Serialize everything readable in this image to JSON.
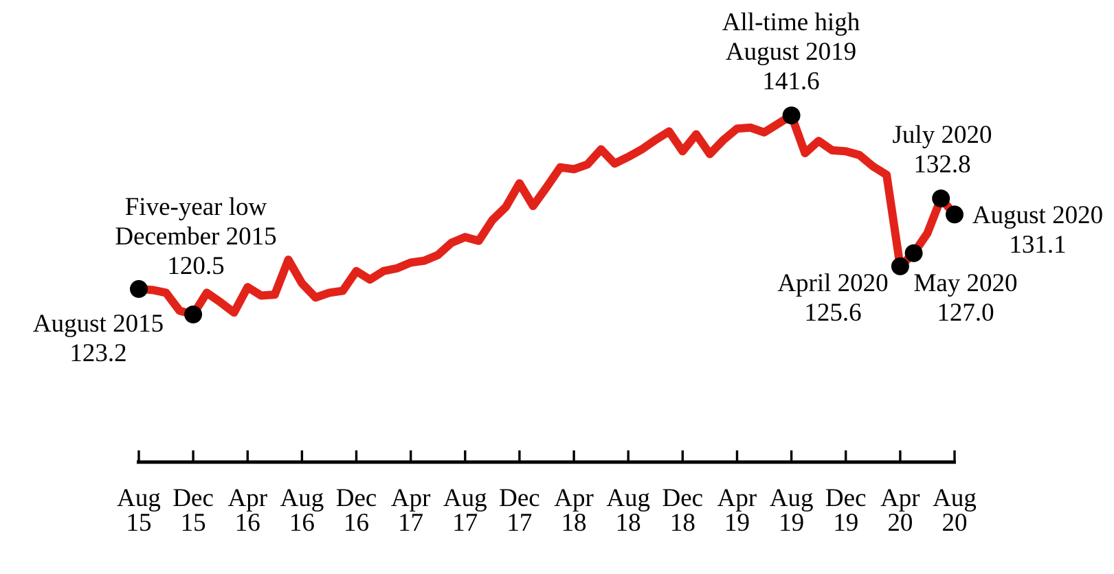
{
  "chart_data": {
    "type": "line",
    "title": "",
    "x_label": "",
    "y_label": "",
    "y_axis_visible": false,
    "ylim": [
      118,
      144
    ],
    "line_color": "#e2231a",
    "marker_color": "#000000",
    "axis_color": "#000000",
    "background_color": "#ffffff",
    "months": [
      "Aug 2015",
      "Sep 2015",
      "Oct 2015",
      "Nov 2015",
      "Dec 2015",
      "Jan 2016",
      "Feb 2016",
      "Mar 2016",
      "Apr 2016",
      "May 2016",
      "Jun 2016",
      "Jul 2016",
      "Aug 2016",
      "Sep 2016",
      "Oct 2016",
      "Nov 2016",
      "Dec 2016",
      "Jan 2017",
      "Feb 2017",
      "Mar 2017",
      "Apr 2017",
      "May 2017",
      "Jun 2017",
      "Jul 2017",
      "Aug 2017",
      "Sep 2017",
      "Oct 2017",
      "Nov 2017",
      "Dec 2017",
      "Jan 2018",
      "Feb 2018",
      "Mar 2018",
      "Apr 2018",
      "May 2018",
      "Jun 2018",
      "Jul 2018",
      "Aug 2018",
      "Sep 2018",
      "Oct 2018",
      "Nov 2018",
      "Dec 2018",
      "Jan 2019",
      "Feb 2019",
      "Mar 2019",
      "Apr 2019",
      "May 2019",
      "Jun 2019",
      "Jul 2019",
      "Aug 2019",
      "Sep 2019",
      "Oct 2019",
      "Nov 2019",
      "Dec 2019",
      "Jan 2020",
      "Feb 2020",
      "Mar 2020",
      "Apr 2020",
      "May 2020",
      "Jun 2020",
      "Jul 2020",
      "Aug 2020"
    ],
    "values": [
      123.2,
      123.1,
      122.8,
      120.9,
      120.5,
      122.8,
      121.8,
      120.7,
      123.4,
      122.5,
      122.6,
      126.3,
      123.8,
      122.3,
      122.8,
      123.0,
      125.1,
      124.2,
      125.1,
      125.4,
      126.0,
      126.2,
      126.8,
      128.1,
      128.7,
      128.3,
      130.5,
      131.9,
      134.4,
      132.0,
      134.0,
      136.1,
      135.9,
      136.4,
      138.0,
      136.5,
      137.2,
      138.0,
      139.0,
      139.9,
      137.8,
      139.6,
      137.5,
      139.0,
      140.2,
      140.3,
      139.8,
      140.7,
      141.6,
      137.6,
      138.9,
      137.9,
      137.8,
      137.4,
      136.2,
      135.3,
      125.6,
      127.0,
      129.1,
      132.8,
      131.1
    ],
    "x_tick_month_indices": [
      0,
      4,
      8,
      12,
      16,
      20,
      24,
      28,
      32,
      36,
      40,
      44,
      48,
      52,
      56,
      60
    ],
    "x_tick_labels": [
      [
        "Aug",
        "15"
      ],
      [
        "Dec",
        "15"
      ],
      [
        "Apr",
        "16"
      ],
      [
        "Aug",
        "16"
      ],
      [
        "Dec",
        "16"
      ],
      [
        "Apr",
        "17"
      ],
      [
        "Aug",
        "17"
      ],
      [
        "Dec",
        "17"
      ],
      [
        "Apr",
        "18"
      ],
      [
        "Aug",
        "18"
      ],
      [
        "Dec",
        "18"
      ],
      [
        "Apr",
        "19"
      ],
      [
        "Aug",
        "19"
      ],
      [
        "Dec",
        "19"
      ],
      [
        "Apr",
        "20"
      ],
      [
        "Aug",
        "20"
      ]
    ],
    "highlighted_points": [
      {
        "month": "Aug 2015",
        "month_index": 0,
        "value": 123.2
      },
      {
        "month": "Dec 2015",
        "month_index": 4,
        "value": 120.5
      },
      {
        "month": "Aug 2019",
        "month_index": 48,
        "value": 141.6
      },
      {
        "month": "Apr 2020",
        "month_index": 56,
        "value": 125.6
      },
      {
        "month": "May 2020",
        "month_index": 57,
        "value": 127.0
      },
      {
        "month": "Jul 2020",
        "month_index": 59,
        "value": 132.8
      },
      {
        "month": "Aug 2020",
        "month_index": 60,
        "value": 131.1
      }
    ],
    "annotations": [
      {
        "id": "aug-2015",
        "anchor_month_index": 0,
        "lines": [
          "August 2015",
          "123.2"
        ]
      },
      {
        "id": "dec-2015",
        "anchor_month_index": 4,
        "lines": [
          "Five-year low",
          "December 2015",
          "120.5"
        ]
      },
      {
        "id": "aug-2019",
        "anchor_month_index": 48,
        "lines": [
          "All-time high",
          "August 2019",
          "141.6"
        ]
      },
      {
        "id": "jul-2020",
        "anchor_month_index": 59,
        "lines": [
          "July 2020",
          "132.8"
        ]
      },
      {
        "id": "aug-2020",
        "anchor_month_index": 60,
        "lines": [
          "August 2020",
          "131.1"
        ]
      },
      {
        "id": "apr-2020",
        "anchor_month_index": 56,
        "lines": [
          "April 2020",
          "125.6"
        ]
      },
      {
        "id": "may-2020",
        "anchor_month_index": 57,
        "lines": [
          "May 2020",
          "127.0"
        ]
      }
    ]
  }
}
